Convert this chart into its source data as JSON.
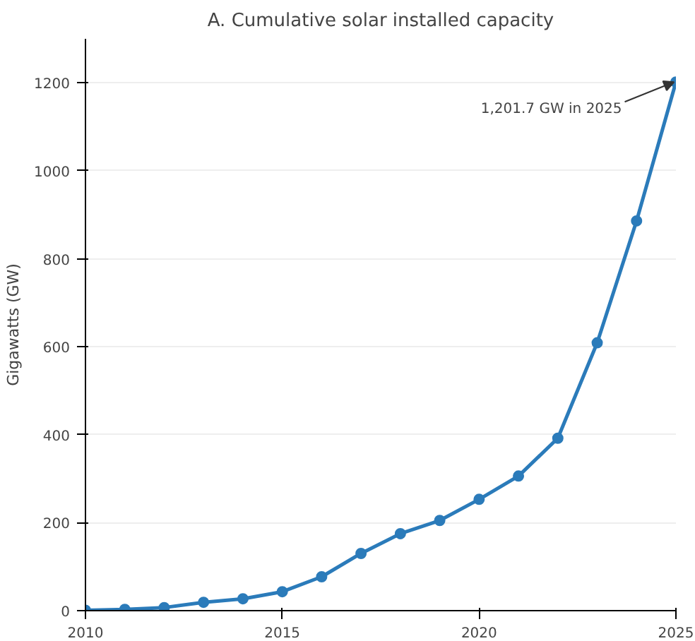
{
  "chart_data": {
    "type": "line",
    "title": "A. Cumulative solar installed capacity",
    "ylabel": "Gigawatts (GW)",
    "x": [
      2010,
      2011,
      2012,
      2013,
      2014,
      2015,
      2016,
      2017,
      2018,
      2019,
      2020,
      2021,
      2022,
      2023,
      2024,
      2025
    ],
    "series": [
      {
        "color": "#2b7bba",
        "values": [
          1,
          3,
          7,
          19,
          27,
          43,
          77,
          130,
          175,
          205,
          253,
          306,
          392,
          609,
          886,
          1201.7
        ]
      }
    ],
    "xlim": [
      2010,
      2025
    ],
    "ylim": [
      0,
      1300
    ],
    "xticks": [
      2010,
      2015,
      2020,
      2025
    ],
    "yticks": [
      0,
      200,
      400,
      600,
      800,
      1000,
      1200
    ],
    "grid": "y",
    "marker": "circle",
    "line_style": "solid",
    "annotations": [
      {
        "text": "1,201.7 GW in 2025",
        "x": 2025,
        "y": 1201.7
      }
    ]
  }
}
